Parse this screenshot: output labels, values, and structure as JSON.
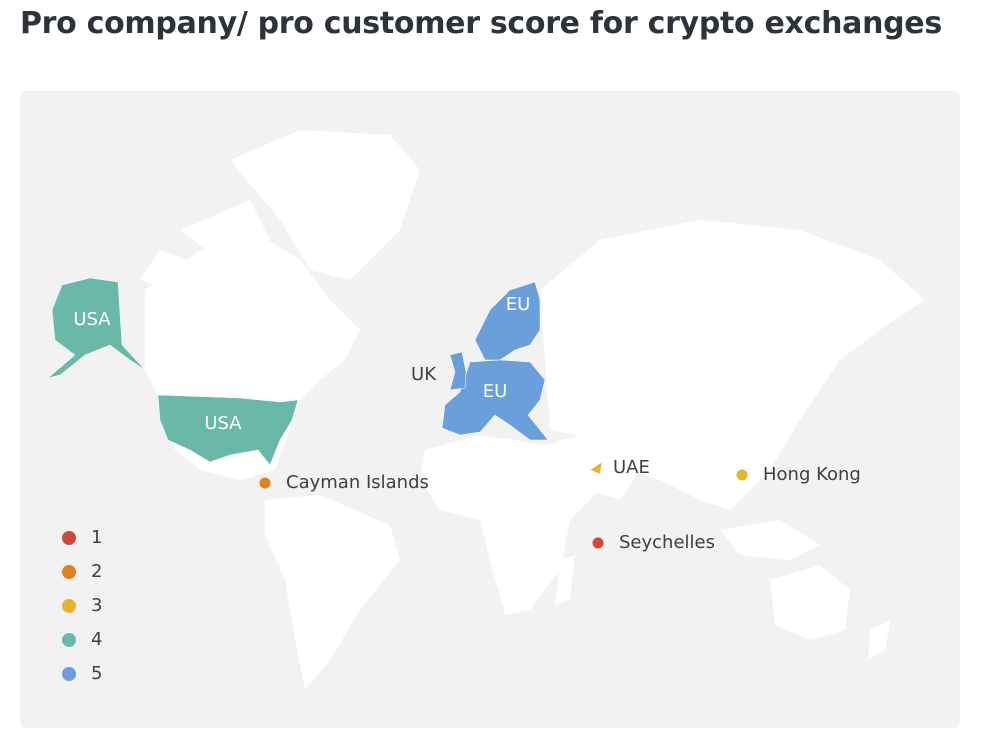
{
  "title": "Pro company/ pro customer score for crypto exchanges",
  "legend": [
    {
      "score": 1,
      "color": "#d1453b"
    },
    {
      "score": 2,
      "color": "#e3801f"
    },
    {
      "score": 3,
      "color": "#e9b32c"
    },
    {
      "score": 4,
      "color": "#6ab8a8"
    },
    {
      "score": 5,
      "color": "#6a9fdc"
    }
  ],
  "regions": [
    {
      "label": "USA",
      "score": 4
    },
    {
      "label": "USA",
      "score": 4
    },
    {
      "label": "EU",
      "score": 5
    },
    {
      "label": "EU",
      "score": 5
    },
    {
      "label": "UK",
      "score": 5
    },
    {
      "label": "UAE",
      "score": 3
    }
  ],
  "markers": [
    {
      "label": "Cayman Islands",
      "score": 2
    },
    {
      "label": "Seychelles",
      "score": 1
    },
    {
      "label": "Hong Kong",
      "score": 3
    }
  ]
}
